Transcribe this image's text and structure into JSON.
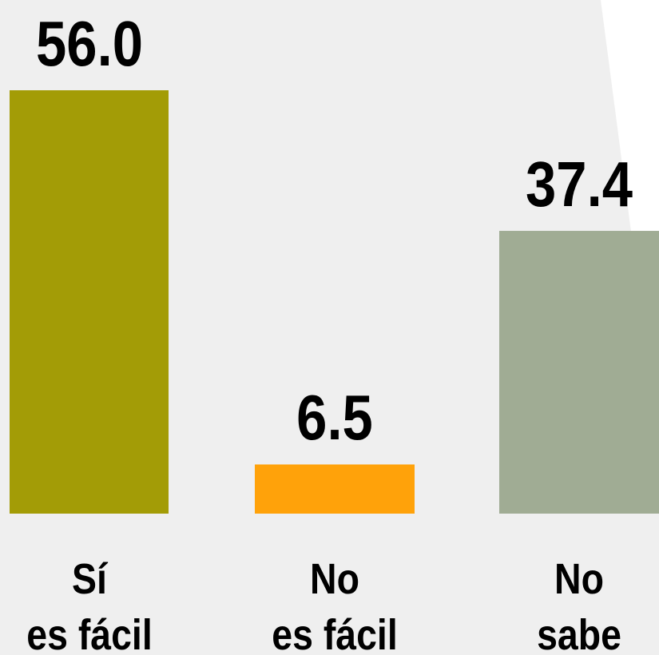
{
  "chart_data": {
    "type": "bar",
    "categories": [
      "Sí\nes fácil",
      "No\nes fácil",
      "No\nsabe"
    ],
    "values": [
      56.0,
      6.5,
      37.4
    ],
    "value_labels": [
      "56.0",
      "6.5",
      "37.4"
    ],
    "colors": [
      "#a39c06",
      "#ffa20a",
      "#a0ac94"
    ]
  }
}
